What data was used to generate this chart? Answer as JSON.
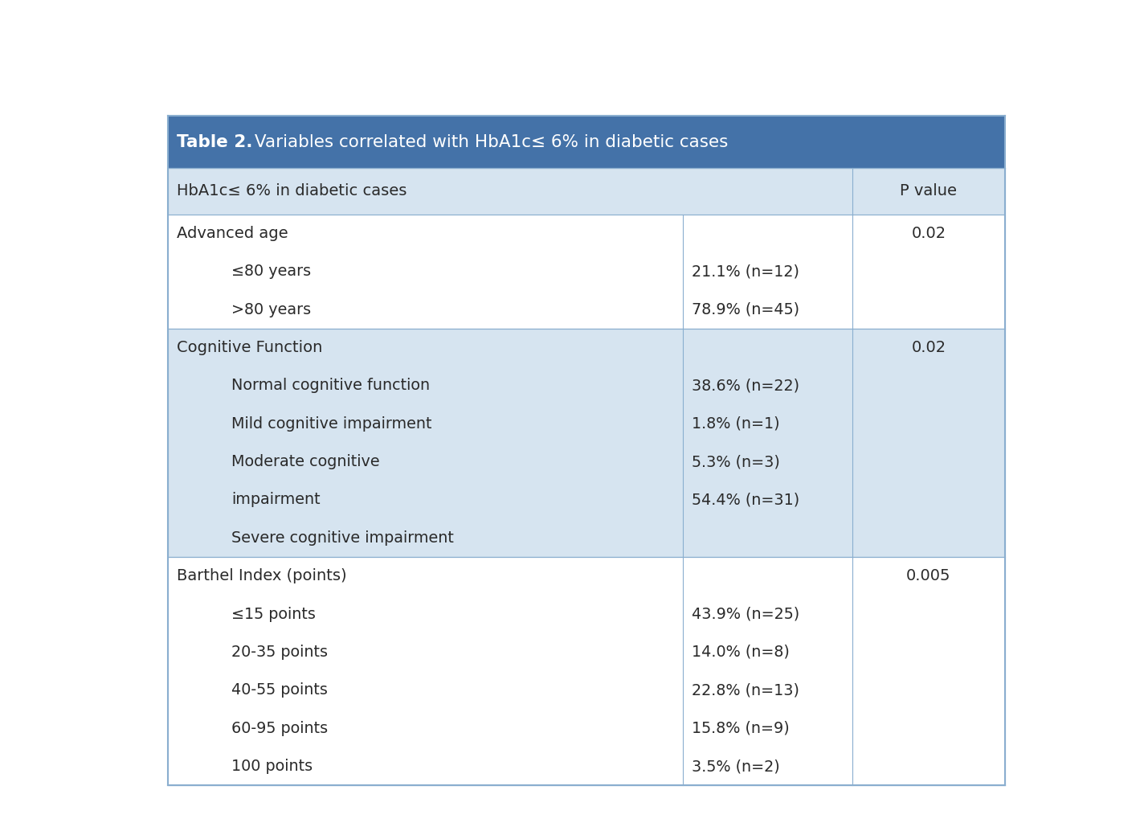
{
  "header_bg": "#4472a8",
  "header_text_color": "#ffffff",
  "row_bg_light": "#d6e4f0",
  "row_bg_white": "#ffffff",
  "border_color": "#8aaecf",
  "text_color": "#2a2a2a",
  "col1_header": "HbA1c≤ 6% in diabetic cases",
  "col3_header": "P value",
  "title_bold": "Table 2.",
  "title_rest": " Variables correlated with HbA1c≤ 6% in diabetic cases",
  "sections": [
    {
      "header": "Advanced age",
      "pvalue": "0.02",
      "bg": "#ffffff",
      "lines": [
        {
          "label": "≤80 years",
          "indent": true,
          "value": "21.1% (n=12)"
        },
        {
          "label": ">80 years",
          "indent": true,
          "value": "78.9% (n=45)"
        }
      ]
    },
    {
      "header": "Cognitive Function",
      "pvalue": "0.02",
      "bg": "#d6e4f0",
      "lines": [
        {
          "label": "Normal cognitive function",
          "indent": true,
          "value": "38.6% (n=22)"
        },
        {
          "label": "Mild cognitive impairment",
          "indent": true,
          "value": "1.8% (n=1)"
        },
        {
          "label": "Moderate cognitive",
          "indent": true,
          "value": "5.3% (n=3)"
        },
        {
          "label": "impairment",
          "indent": true,
          "value": "54.4% (n=31)"
        },
        {
          "label": "Severe cognitive impairment",
          "indent": true,
          "value": ""
        }
      ]
    },
    {
      "header": "Barthel Index (points)",
      "pvalue": "0.005",
      "bg": "#ffffff",
      "lines": [
        {
          "label": "≤15 points",
          "indent": true,
          "value": "43.9% (n=25)"
        },
        {
          "label": "20-35 points",
          "indent": true,
          "value": "14.0% (n=8)"
        },
        {
          "label": "40-55 points",
          "indent": true,
          "value": "22.8% (n=13)"
        },
        {
          "label": "60-95 points",
          "indent": true,
          "value": "15.8% (n=9)"
        },
        {
          "label": "100 points",
          "indent": true,
          "value": "3.5% (n=2)"
        }
      ]
    }
  ]
}
